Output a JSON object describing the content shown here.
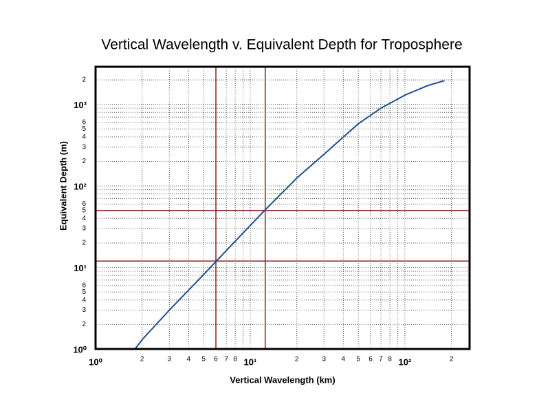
{
  "chart_data": {
    "type": "line",
    "title": "Vertical Wavelength v. Equivalent Depth for Troposphere",
    "x_label": "Vertical Wavelength (km)",
    "y_label": "Equivalent Depth (m)",
    "log_x": true,
    "log_y": true,
    "grid": true,
    "x": [
      1,
      1.8,
      2,
      3,
      5,
      8,
      12.5,
      20,
      30,
      50,
      70,
      100,
      140,
      180
    ],
    "series": [
      {
        "color": "#1f4e8c",
        "values": [
          1,
          1,
          1.3,
          3,
          8.2,
          21,
          51,
          125,
          245,
          580,
          900,
          1300,
          1700,
          1960
        ]
      }
    ],
    "reference_lines": {
      "color": "#8b1a1a",
      "x": [
        6,
        12.5
      ],
      "y": [
        12,
        50
      ]
    },
    "xlim": [
      1,
      262
    ],
    "ylim": [
      1,
      2900
    ],
    "xticks": [
      {
        "value": 1,
        "label": "10⁰"
      },
      2,
      3,
      4,
      5,
      6,
      7,
      8,
      {
        "value": 10,
        "label": "10¹"
      },
      {
        "value": 20,
        "label": "2"
      },
      {
        "value": 30,
        "label": "3"
      },
      {
        "value": 40,
        "label": "4"
      },
      {
        "value": 50,
        "label": "5"
      },
      {
        "value": 60,
        "label": "6"
      },
      {
        "value": 70,
        "label": "7"
      },
      {
        "value": 80,
        "label": "8"
      },
      {
        "value": 100,
        "label": "10²"
      },
      {
        "value": 200,
        "label": "2"
      }
    ],
    "xticks_minor": [
      9,
      90
    ],
    "yticks": [
      {
        "value": 1,
        "label": "10⁰"
      },
      2,
      3,
      4,
      5,
      6,
      {
        "value": 10,
        "label": "10¹"
      },
      {
        "value": 20,
        "label": "2"
      },
      {
        "value": 30,
        "label": "3"
      },
      {
        "value": 40,
        "label": "4"
      },
      {
        "value": 50,
        "label": "5"
      },
      {
        "value": 60,
        "label": "6"
      },
      {
        "value": 100,
        "label": "10²"
      },
      {
        "value": 200,
        "label": "2"
      },
      {
        "value": 300,
        "label": "3"
      },
      {
        "value": 400,
        "label": "4"
      },
      {
        "value": 500,
        "label": "5"
      },
      {
        "value": 600,
        "label": "6"
      },
      {
        "value": 1000,
        "label": "10³"
      },
      {
        "value": 2000,
        "label": "2"
      }
    ],
    "yticks_minor": [
      7,
      8,
      9,
      70,
      80,
      90,
      700,
      800,
      900
    ]
  }
}
